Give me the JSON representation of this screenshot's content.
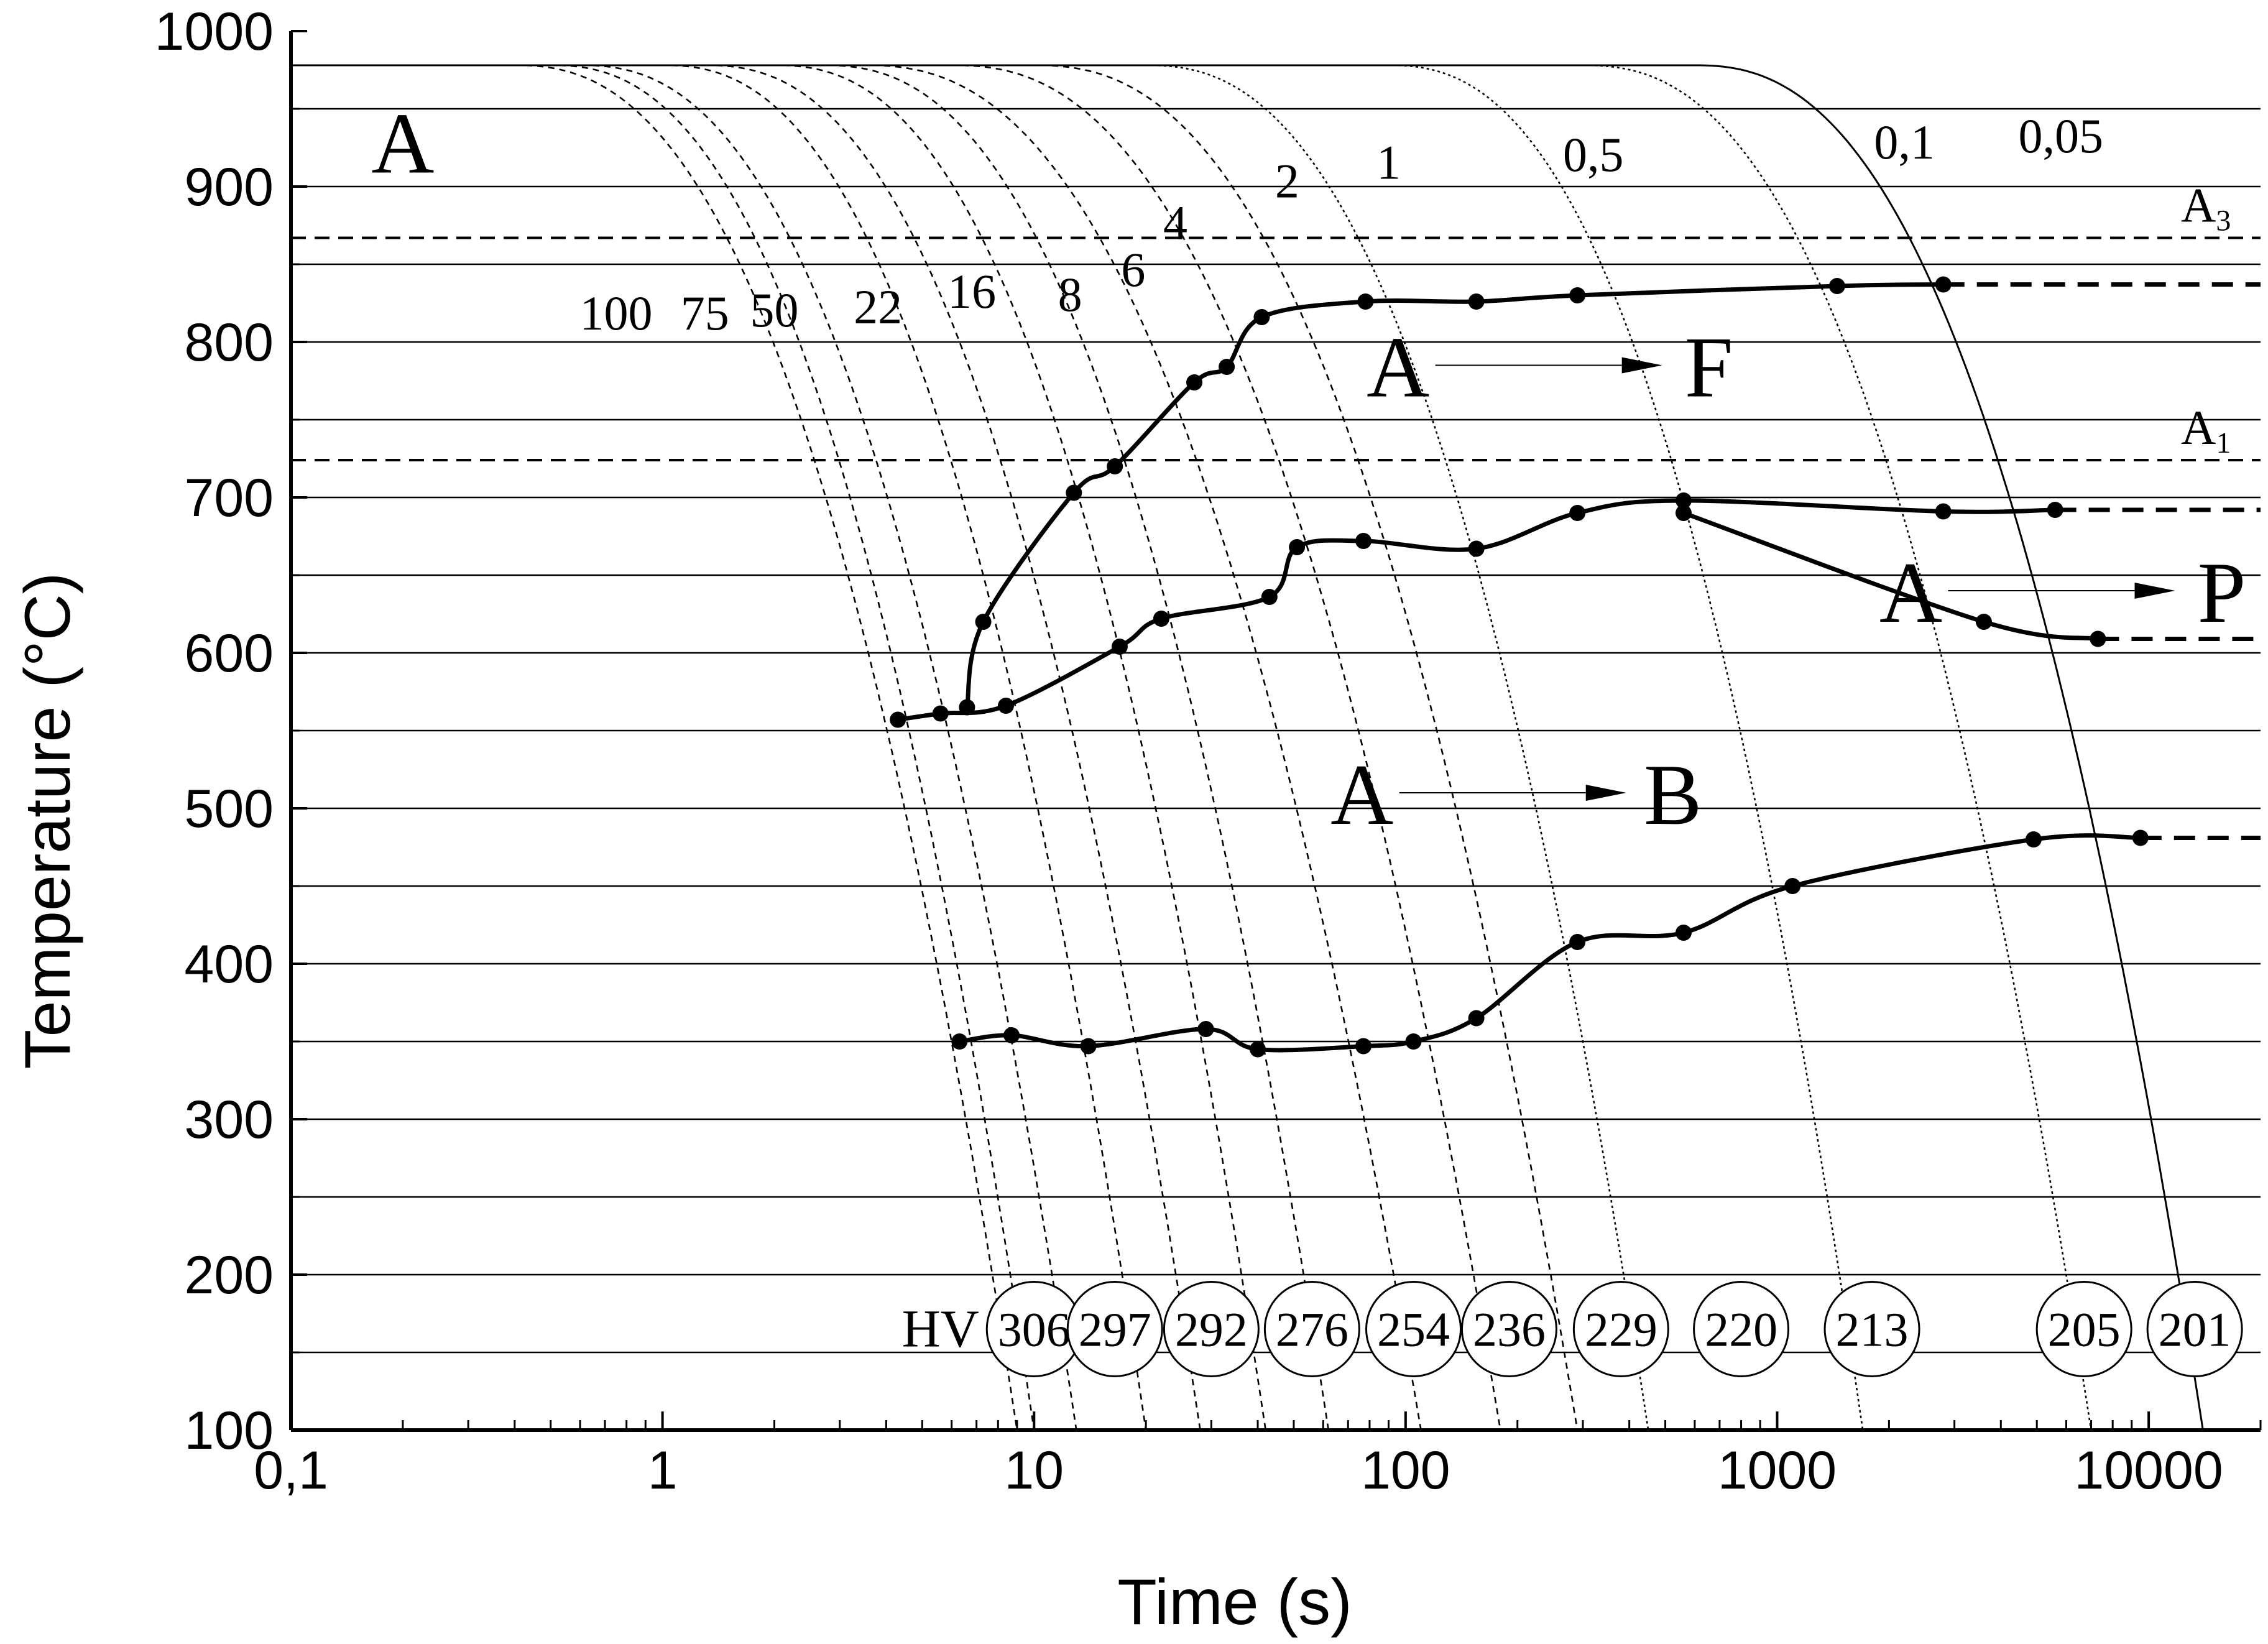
{
  "chart_data": {
    "type": "line",
    "title": "",
    "xlabel": "Time (s)",
    "ylabel": "Temperature (°C)",
    "xscale": "log",
    "xlim": [
      0.1,
      20000
    ],
    "ylim": [
      100,
      1000
    ],
    "x_ticks": [
      {
        "value": 0.1,
        "label": "0,1"
      },
      {
        "value": 1,
        "label": "1"
      },
      {
        "value": 10,
        "label": "10"
      },
      {
        "value": 100,
        "label": "100"
      },
      {
        "value": 1000,
        "label": "1000"
      },
      {
        "value": 10000,
        "label": "10000"
      }
    ],
    "y_ticks": [
      {
        "value": 100,
        "label": "100"
      },
      {
        "value": 200,
        "label": "200"
      },
      {
        "value": 300,
        "label": "300"
      },
      {
        "value": 400,
        "label": "400"
      },
      {
        "value": 500,
        "label": "500"
      },
      {
        "value": 600,
        "label": "600"
      },
      {
        "value": 700,
        "label": "700"
      },
      {
        "value": 800,
        "label": "800"
      },
      {
        "value": 900,
        "label": "900"
      },
      {
        "value": 1000,
        "label": "1000"
      }
    ],
    "gridlines_y": [
      150,
      200,
      250,
      300,
      350,
      400,
      450,
      500,
      550,
      600,
      650,
      700,
      750,
      800,
      850,
      900,
      950
    ],
    "reference_lines": [
      {
        "name": "A3",
        "label_main": "A",
        "label_sub": "3",
        "y": 867
      },
      {
        "name": "A1",
        "label_main": "A",
        "label_sub": "1",
        "y": 724
      }
    ],
    "cooling_curves": [
      {
        "label": "100",
        "t_at_start": 0.4,
        "t_at_100": 9.0,
        "hv": null
      },
      {
        "label": "75",
        "t_at_start": 0.5,
        "t_at_100": 10.0,
        "hv": "306"
      },
      {
        "label": "50",
        "t_at_start": 0.6,
        "t_at_100": 13.0,
        "hv": "297"
      },
      {
        "label": "22",
        "t_at_start": 1.0,
        "t_at_100": 20.0,
        "hv": "292"
      },
      {
        "label": "16",
        "t_at_start": 1.3,
        "t_at_100": 28.0,
        "hv": "276"
      },
      {
        "label": "8",
        "t_at_start": 2.0,
        "t_at_100": 42.0,
        "hv": "254"
      },
      {
        "label": "6",
        "t_at_start": 2.7,
        "t_at_100": 62.0,
        "hv": null
      },
      {
        "label": "4",
        "t_at_start": 3.5,
        "t_at_100": 110.0,
        "hv": null
      },
      {
        "label": "2",
        "t_at_start": 6.0,
        "t_at_100": 180.0,
        "hv": "236"
      },
      {
        "label": "1",
        "t_at_start": 10.0,
        "t_at_100": 290.0,
        "hv": "229"
      },
      {
        "label": "0,5",
        "t_at_start": 20.0,
        "t_at_100": 450.0,
        "hv": "220"
      },
      {
        "label": "0,1",
        "t_at_start": 90.0,
        "t_at_100": 1700.0,
        "hv": "213"
      },
      {
        "label": "0,05",
        "t_at_start": 300.0,
        "t_at_100": 7000.0,
        "hv": "205"
      },
      {
        "label": "",
        "t_at_start": 600.0,
        "t_at_100": 14000.0,
        "hv": "201"
      }
    ],
    "hv_prefix": "HV",
    "hv_values": [
      "306",
      "297",
      "292",
      "276",
      "254",
      "236",
      "229",
      "220",
      "213",
      "205",
      "201"
    ],
    "curve_labels_top": [
      "1",
      "0,5",
      "0,1",
      "0,05"
    ],
    "curve_labels_mid": [
      "2",
      "4",
      "6"
    ],
    "curve_labels_low": [
      "100",
      "75",
      "50",
      "22",
      "16",
      "8"
    ],
    "series": [
      {
        "name": "A → F start",
        "values": [
          [
            6.6,
            565
          ],
          [
            7.3,
            620
          ],
          [
            12.8,
            703
          ],
          [
            16.5,
            720
          ],
          [
            27,
            774
          ],
          [
            33,
            784
          ],
          [
            41,
            816
          ],
          [
            78,
            826
          ],
          [
            155,
            826
          ],
          [
            290,
            830
          ],
          [
            1450,
            836
          ],
          [
            2800,
            837
          ]
        ],
        "extend_to": 20000
      },
      {
        "name": "A → P start",
        "values": [
          [
            4.3,
            557
          ],
          [
            5.6,
            561
          ],
          [
            8.4,
            566
          ],
          [
            17,
            604
          ],
          [
            22,
            622
          ],
          [
            43,
            636
          ],
          [
            51,
            668
          ],
          [
            77,
            672
          ],
          [
            155,
            667
          ],
          [
            290,
            690
          ],
          [
            560,
            698
          ],
          [
            2800,
            691
          ],
          [
            5600,
            692
          ]
        ],
        "extend_to": 20000
      },
      {
        "name": "A → P finish",
        "values": [
          [
            560,
            690
          ],
          [
            3600,
            620
          ],
          [
            7300,
            609
          ]
        ],
        "extend_to": 20000
      },
      {
        "name": "A → B finish",
        "values": [
          [
            6.3,
            350
          ],
          [
            8.7,
            354
          ],
          [
            14,
            347
          ],
          [
            29,
            358
          ],
          [
            40,
            345
          ],
          [
            77,
            347
          ],
          [
            105,
            350
          ],
          [
            155,
            365
          ],
          [
            290,
            414
          ],
          [
            560,
            420
          ],
          [
            1100,
            450
          ],
          [
            4900,
            480
          ],
          [
            9500,
            481
          ]
        ],
        "extend_to": 20000
      }
    ],
    "regions": [
      {
        "label": "A",
        "x": 0.2,
        "y": 925
      },
      {
        "from": "A",
        "to": "F",
        "x": 250,
        "y": 785
      },
      {
        "from": "A",
        "to": "P",
        "x": 6000,
        "y": 640
      },
      {
        "from": "A",
        "to": "B",
        "x": 200,
        "y": 510
      }
    ]
  }
}
